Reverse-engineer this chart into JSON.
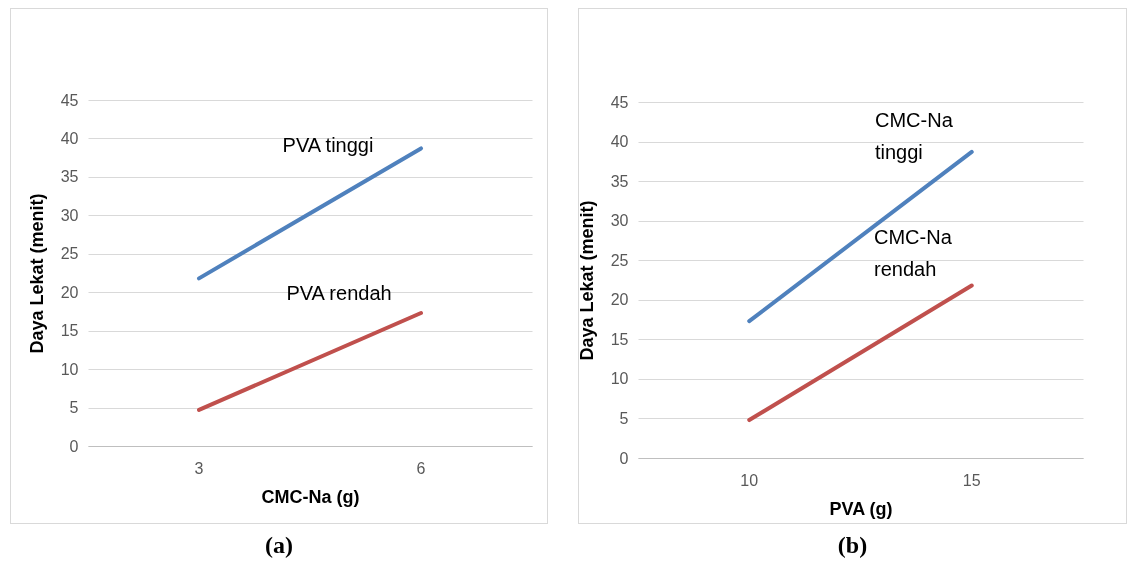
{
  "chart_data": [
    {
      "type": "line",
      "categories": [
        "3",
        "6"
      ],
      "xlabel": "CMC-Na (g)",
      "ylabel": "Daya Lekat (menit)",
      "ylim": [
        0,
        45
      ],
      "yticks": [
        0,
        5,
        10,
        15,
        20,
        25,
        30,
        35,
        40,
        45
      ],
      "grid": "y",
      "legend": false,
      "marker": "none",
      "line_style": "solid",
      "annotations": [
        "(a)"
      ],
      "series": [
        {
          "name": "PVA tinggi",
          "color": "#4f81bd",
          "values": [
            21.8,
            38.7
          ]
        },
        {
          "name": "PVA rendah",
          "color": "#c0504d",
          "values": [
            4.7,
            17.3
          ]
        }
      ]
    },
    {
      "type": "line",
      "categories": [
        "10",
        "15"
      ],
      "xlabel": "PVA (g)",
      "ylabel": "Daya Lekat (menit)",
      "ylim": [
        0,
        45
      ],
      "yticks": [
        0,
        5,
        10,
        15,
        20,
        25,
        30,
        35,
        40,
        45
      ],
      "grid": "y",
      "legend": false,
      "marker": "none",
      "line_style": "solid",
      "annotations": [
        "(b)"
      ],
      "series": [
        {
          "name": "CMC-Na tinggi",
          "color": "#4f81bd",
          "values": [
            17.3,
            38.7
          ]
        },
        {
          "name": "CMC-Na rendah",
          "color": "#c0504d",
          "values": [
            4.8,
            21.8
          ]
        }
      ]
    }
  ]
}
